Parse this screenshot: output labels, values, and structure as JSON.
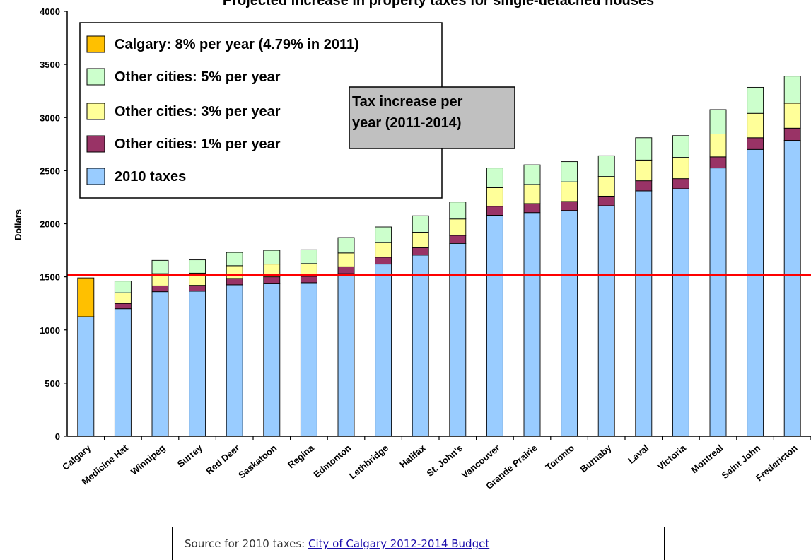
{
  "chart_data": {
    "type": "bar",
    "stacked": true,
    "title": "Projected increase in property taxes for single-detached houses",
    "ylabel": "Dollars",
    "xlabel": "",
    "ylim": [
      0,
      4000
    ],
    "yticks": [
      "0",
      "500",
      "1000",
      "1500",
      "2000",
      "2500",
      "3000",
      "3500",
      "4000"
    ],
    "categories": [
      "Calgary",
      "Medicine Hat",
      "Winnipeg",
      "Surrey",
      "Red Deer",
      "Saskatoon",
      "Regina",
      "Edmonton",
      "Lethbridge",
      "Halifax",
      "St. John's",
      "Vancouver",
      "Grande Prairie",
      "Toronto",
      "Burnaby",
      "Laval",
      "Victoria",
      "Montreal",
      "Saint John",
      "Fredericton"
    ],
    "base_2010": [
      1125,
      1200,
      1360,
      1365,
      1425,
      1440,
      1445,
      1530,
      1620,
      1705,
      1815,
      2080,
      2105,
      2125,
      2170,
      2310,
      2330,
      2525,
      2700,
      2785
    ],
    "totals_1pct": [
      1125,
      1250,
      1415,
      1420,
      1485,
      1500,
      1505,
      1595,
      1685,
      1775,
      1890,
      2165,
      2190,
      2210,
      2260,
      2405,
      2425,
      2630,
      2810,
      2900
    ],
    "totals_3pct": [
      1125,
      1350,
      1530,
      1535,
      1605,
      1620,
      1625,
      1725,
      1825,
      1920,
      2045,
      2340,
      2370,
      2395,
      2445,
      2600,
      2625,
      2845,
      3040,
      3135
    ],
    "totals_5pct": [
      1490,
      1460,
      1655,
      1660,
      1730,
      1750,
      1755,
      1870,
      1970,
      2075,
      2205,
      2525,
      2555,
      2585,
      2640,
      2810,
      2830,
      3075,
      3285,
      3390
    ],
    "reference_line": 1520,
    "legend": [
      {
        "label": "Calgary: 8% per year (4.79% in 2011)",
        "color": "#FFC000"
      },
      {
        "label": "Other cities: 5% per year",
        "color": "#CCFFCC"
      },
      {
        "label": "Other cities: 3% per year",
        "color": "#FFFF99"
      },
      {
        "label": "Other cities: 1% per year",
        "color": "#993366"
      },
      {
        "label": "2010 taxes",
        "color": "#99CCFF"
      }
    ],
    "annotation": [
      "Tax increase per",
      "year (2011-2014)"
    ],
    "colors": {
      "base": "#99CCFF",
      "one_pct": "#993366",
      "three_pct": "#FFFF99",
      "five_pct": "#CCFFCC",
      "calgary": "#FFC000",
      "reference_line": "#FF0000",
      "annotation_bg": "#C0C0C0"
    }
  },
  "source": {
    "prefix": "Source for 2010 taxes: ",
    "link_text": "City of Calgary 2012-2014 Budget"
  }
}
